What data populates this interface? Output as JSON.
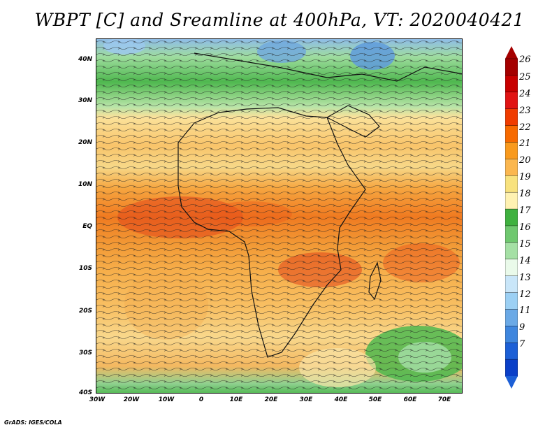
{
  "title": "WBPT [C] and Sreamline at 400hPa, VT: 2020040421",
  "footer": "GrADS: IGES/COLA",
  "lat_labels": [
    "40N",
    "30N",
    "20N",
    "10N",
    "EQ",
    "10S",
    "20S",
    "30S",
    "40S"
  ],
  "lon_labels": [
    "30W",
    "20W",
    "10W",
    "0",
    "10E",
    "20E",
    "30E",
    "40E",
    "50E",
    "60E",
    "70E"
  ],
  "colorbar": {
    "labels": [
      "26",
      "25",
      "24",
      "23",
      "22",
      "21",
      "20",
      "19",
      "18",
      "17",
      "16",
      "15",
      "14",
      "13",
      "12",
      "11",
      "9",
      "7"
    ],
    "colors": [
      "#a50000",
      "#c80000",
      "#e11414",
      "#f03c00",
      "#f76a00",
      "#f99a1d",
      "#fbb74f",
      "#f8e27e",
      "#fff2b2",
      "#3fb13f",
      "#6fc86f",
      "#a5e0a5",
      "#eafaea",
      "#c9e6f9",
      "#9cd0f4",
      "#6aa9e6",
      "#3e86de",
      "#1c5fd6",
      "#0a3fc8"
    ],
    "top_arrow_color": "#a50000",
    "bottom_arrow_color": "#1c5fd6"
  }
}
